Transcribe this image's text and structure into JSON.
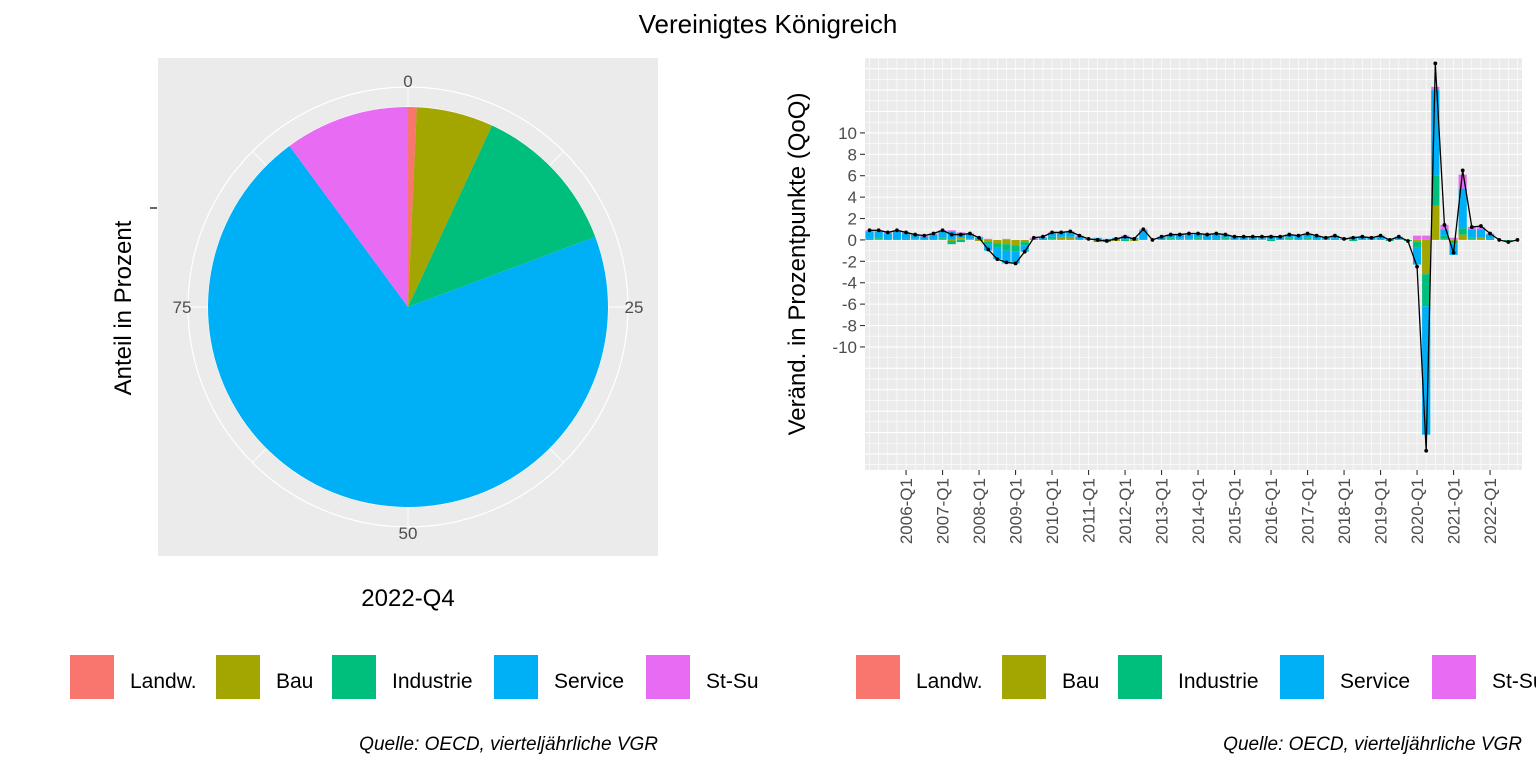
{
  "title": "Vereinigtes Königreich",
  "chart_data": [
    {
      "type": "pie",
      "xlabel": "2022-Q4",
      "ylabel": "Anteil in Prozent",
      "theta_ticks": [
        "0",
        "25",
        "50",
        "75"
      ],
      "categories": [
        "Landw.",
        "Bau",
        "Industrie",
        "Service",
        "St-Su"
      ],
      "values": [
        0.7,
        6.2,
        12.4,
        70.6,
        10.1
      ],
      "legend_position": "bottom",
      "caption": "Quelle: OECD, vierteljährliche VGR"
    },
    {
      "type": "bar",
      "stacked": true,
      "line_series": "Gesamt",
      "ylabel": "Veränd. in Prozentpunkte (QoQ)",
      "ylim": [
        -21.5,
        17
      ],
      "yticks": [
        "10",
        "8",
        "6",
        "4",
        "2",
        "0",
        "-2",
        "-4",
        "-6",
        "-8",
        "-10"
      ],
      "ytick_values": [
        10,
        8,
        6,
        4,
        2,
        0,
        -2,
        -4,
        -6,
        -8,
        -10
      ],
      "xticks": [
        "2006-Q1",
        "2007-Q1",
        "2008-Q1",
        "2009-Q1",
        "2010-Q1",
        "2011-Q1",
        "2012-Q1",
        "2013-Q1",
        "2014-Q1",
        "2015-Q1",
        "2016-Q1",
        "2017-Q1",
        "2018-Q1",
        "2019-Q1",
        "2020-Q1",
        "2021-Q1",
        "2022-Q1"
      ],
      "x_start": "2005-Q1",
      "x": [
        "2005-Q1",
        "2005-Q2",
        "2005-Q3",
        "2005-Q4",
        "2006-Q1",
        "2006-Q2",
        "2006-Q3",
        "2006-Q4",
        "2007-Q1",
        "2007-Q2",
        "2007-Q3",
        "2007-Q4",
        "2008-Q1",
        "2008-Q2",
        "2008-Q3",
        "2008-Q4",
        "2009-Q1",
        "2009-Q2",
        "2009-Q3",
        "2009-Q4",
        "2010-Q1",
        "2010-Q2",
        "2010-Q3",
        "2010-Q4",
        "2011-Q1",
        "2011-Q2",
        "2011-Q3",
        "2011-Q4",
        "2012-Q1",
        "2012-Q2",
        "2012-Q3",
        "2012-Q4",
        "2013-Q1",
        "2013-Q2",
        "2013-Q3",
        "2013-Q4",
        "2014-Q1",
        "2014-Q2",
        "2014-Q3",
        "2014-Q4",
        "2015-Q1",
        "2015-Q2",
        "2015-Q3",
        "2015-Q4",
        "2016-Q1",
        "2016-Q2",
        "2016-Q3",
        "2016-Q4",
        "2017-Q1",
        "2017-Q2",
        "2017-Q3",
        "2017-Q4",
        "2018-Q1",
        "2018-Q2",
        "2018-Q3",
        "2018-Q4",
        "2019-Q1",
        "2019-Q2",
        "2019-Q3",
        "2019-Q4",
        "2020-Q1",
        "2020-Q2",
        "2020-Q3",
        "2020-Q4",
        "2021-Q1",
        "2021-Q2",
        "2021-Q3",
        "2021-Q4",
        "2022-Q1",
        "2022-Q2",
        "2022-Q3",
        "2022-Q4"
      ],
      "series": [
        {
          "name": "Landw.",
          "values": [
            0,
            0,
            0,
            0,
            0,
            0,
            0,
            0,
            0,
            0,
            0.1,
            0.1,
            0,
            0,
            0,
            0,
            0,
            0,
            0,
            0,
            0,
            0,
            0,
            0,
            0,
            0.1,
            0,
            0,
            0,
            0,
            0,
            0,
            0,
            0,
            0,
            0,
            0,
            0,
            0,
            0,
            0,
            0,
            0,
            0,
            0,
            0,
            0,
            0,
            0,
            0,
            0,
            0,
            0,
            0,
            0,
            0,
            0,
            0,
            0,
            0,
            0,
            0,
            0,
            0,
            0,
            0,
            0,
            0,
            0,
            0,
            0,
            0
          ]
        },
        {
          "name": "Bau",
          "values": [
            0,
            0.1,
            0,
            0,
            0,
            0.1,
            0,
            0,
            0.1,
            -0.1,
            0.1,
            0,
            -0.1,
            -0.2,
            -0.3,
            -0.4,
            -0.5,
            -0.2,
            0,
            0,
            0.1,
            0.2,
            0.2,
            0,
            0,
            -0.1,
            0,
            -0.1,
            0,
            -0.1,
            0,
            0,
            0,
            0.1,
            0.1,
            0.1,
            0.1,
            0,
            0,
            0.1,
            0,
            0,
            0,
            0.1,
            0,
            0,
            0.1,
            0,
            0.1,
            0,
            0,
            0,
            0,
            0,
            0,
            0,
            0,
            0,
            0,
            0,
            -0.2,
            -3.2,
            3.2,
            0.1,
            -0.1,
            0.5,
            0.1,
            0.2,
            0,
            0,
            0,
            0
          ]
        },
        {
          "name": "Industrie",
          "values": [
            0.1,
            0.1,
            0,
            0,
            0.1,
            0,
            0,
            0,
            0.1,
            -0.3,
            -0.2,
            0,
            0,
            -0.2,
            -0.4,
            -0.6,
            -0.6,
            -0.3,
            0,
            0.1,
            0.2,
            0.1,
            0.1,
            0,
            0,
            -0.1,
            -0.2,
            0,
            -0.1,
            0,
            0,
            0,
            0,
            0.1,
            0,
            0,
            0.1,
            0,
            0.1,
            0.1,
            0,
            0,
            0.1,
            0,
            -0.1,
            0,
            0.1,
            0,
            0.1,
            0,
            0,
            0.1,
            0,
            -0.1,
            0,
            0,
            0,
            -0.1,
            0,
            -0.1,
            -0.5,
            -3.0,
            2.8,
            0.3,
            -0.2,
            0.6,
            0.1,
            0,
            0.1,
            0,
            -0.1,
            0
          ]
        },
        {
          "name": "Service",
          "values": [
            0.7,
            0.6,
            0.6,
            0.8,
            0.5,
            0.4,
            0.3,
            0.5,
            0.6,
            0.8,
            0.4,
            0.4,
            0.2,
            -0.6,
            -1.1,
            -1.2,
            -1.1,
            -0.6,
            0.1,
            0.1,
            0.3,
            0.4,
            0.4,
            0.3,
            0.1,
            0.1,
            0.1,
            0.2,
            0.3,
            0.2,
            0.9,
            0,
            0.3,
            0.3,
            0.4,
            0.4,
            0.4,
            0.5,
            0.5,
            0.3,
            0.3,
            0.3,
            0.2,
            0.2,
            0.4,
            0.3,
            0.3,
            0.4,
            0.4,
            0.4,
            0.2,
            0.3,
            0.1,
            0.3,
            0.3,
            0.2,
            0.4,
            0.1,
            0.3,
            0,
            -1.6,
            -12.0,
            8.0,
            0.6,
            -1.1,
            3.7,
            0.8,
            0.8,
            0.4,
            0,
            -0.1,
            0
          ]
        },
        {
          "name": "St-Su",
          "values": [
            0.1,
            0.1,
            0.1,
            0.1,
            0.1,
            0,
            0.1,
            0.1,
            0.1,
            0.1,
            0.1,
            0.1,
            0.1,
            0.1,
            0,
            0.1,
            0,
            0,
            0.1,
            0.1,
            0.1,
            0,
            0.1,
            0.1,
            0,
            0,
            0,
            0,
            0.1,
            0,
            0.1,
            0,
            0,
            0,
            0,
            0.1,
            0,
            0,
            0,
            0,
            0,
            0,
            0,
            0,
            0,
            0,
            0,
            0,
            0,
            0,
            0,
            0,
            0,
            0,
            0,
            0,
            0,
            0,
            0,
            0,
            0.4,
            0.4,
            0.3,
            0.4,
            0.2,
            1.3,
            0.2,
            0.2,
            0.1,
            0,
            0,
            0
          ]
        }
      ],
      "line_values": [
        0.9,
        0.9,
        0.7,
        0.9,
        0.7,
        0.5,
        0.4,
        0.6,
        0.9,
        0.5,
        0.5,
        0.6,
        0.2,
        -0.9,
        -1.8,
        -2.1,
        -2.2,
        -1.1,
        0.2,
        0.3,
        0.7,
        0.7,
        0.8,
        0.4,
        0.1,
        0,
        -0.1,
        0.1,
        0.3,
        0.1,
        1.0,
        0,
        0.3,
        0.5,
        0.5,
        0.6,
        0.6,
        0.5,
        0.6,
        0.5,
        0.3,
        0.3,
        0.3,
        0.3,
        0.3,
        0.3,
        0.5,
        0.4,
        0.6,
        0.4,
        0.2,
        0.4,
        0.1,
        0.2,
        0.3,
        0.2,
        0.4,
        0,
        0.3,
        -0.1,
        -2.5,
        -19.7,
        16.5,
        1.4,
        -1.2,
        6.5,
        1.2,
        1.3,
        0.6,
        0,
        -0.2,
        0
      ],
      "colors": {
        "Landw.": "#F8766D",
        "Bau": "#A3A500",
        "Industrie": "#00BF7D",
        "Service": "#00B0F6",
        "St-Su": "#E76BF3"
      },
      "legend_position": "bottom",
      "caption": "Quelle: OECD, vierteljährliche VGR"
    }
  ],
  "legend_left": {
    "items": [
      {
        "label": "Landw.",
        "color": "#F8766D"
      },
      {
        "label": "Bau",
        "color": "#A3A500"
      },
      {
        "label": "Industrie",
        "color": "#00BF7D"
      },
      {
        "label": "Service",
        "color": "#00B0F6"
      },
      {
        "label": "St-Su",
        "color": "#E76BF3"
      }
    ]
  },
  "legend_right": {
    "items": [
      {
        "label": "Landw.",
        "color": "#F8766D"
      },
      {
        "label": "Bau",
        "color": "#A3A500"
      },
      {
        "label": "Industrie",
        "color": "#00BF7D"
      },
      {
        "label": "Service",
        "color": "#00B0F6"
      },
      {
        "label": "St-Su",
        "color": "#E76BF3"
      }
    ]
  },
  "caption_left": "Quelle: OECD, vierteljährliche VGR",
  "caption_right": "Quelle: OECD, vierteljährliche VGR",
  "panel_bg": "#EBEBEB"
}
